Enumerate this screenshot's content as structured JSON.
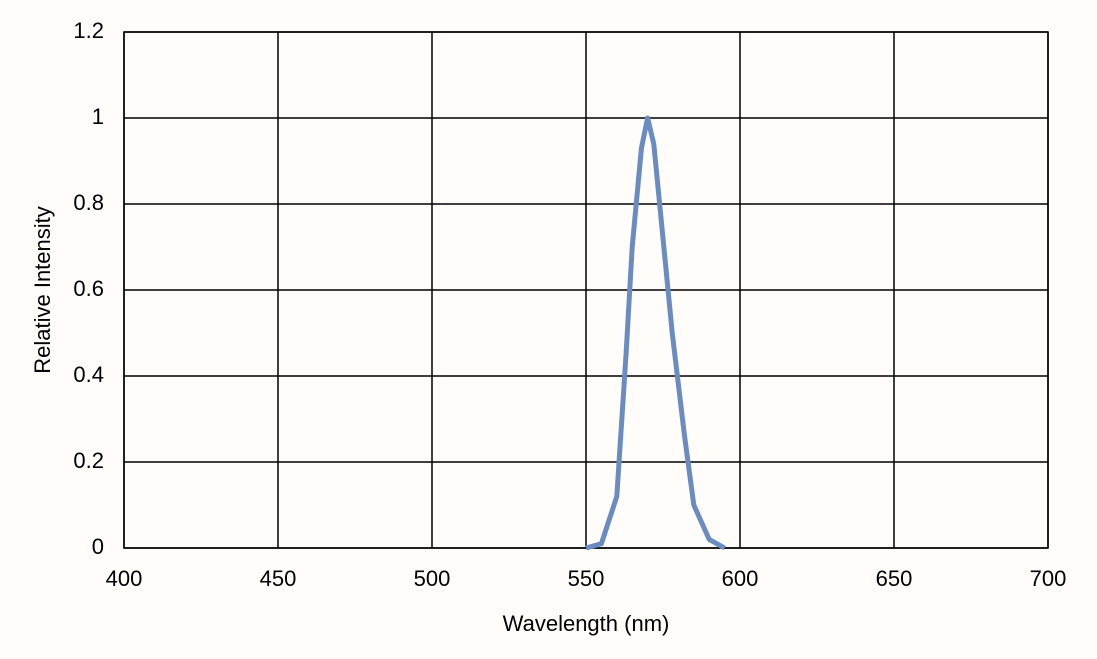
{
  "chart_data": {
    "type": "line",
    "x_label": "Wavelength (nm)",
    "y_label": "Relative Intensity",
    "x": [
      550,
      555,
      560,
      563,
      565,
      568,
      570,
      572,
      575,
      578,
      582,
      585,
      590,
      595
    ],
    "series": [
      {
        "name": "Relative Intensity",
        "color": "#6a8cc0",
        "values": [
          0,
          0.01,
          0.12,
          0.45,
          0.7,
          0.93,
          1,
          0.94,
          0.72,
          0.5,
          0.26,
          0.1,
          0.02,
          0
        ]
      }
    ],
    "xlim": [
      400,
      700
    ],
    "xticks": [
      400,
      450,
      500,
      550,
      600,
      650,
      700
    ],
    "ylim": [
      0,
      1.2
    ],
    "yticks": [
      0,
      0.2,
      0.4,
      0.6,
      0.8,
      1,
      1.2
    ],
    "grid": true
  }
}
